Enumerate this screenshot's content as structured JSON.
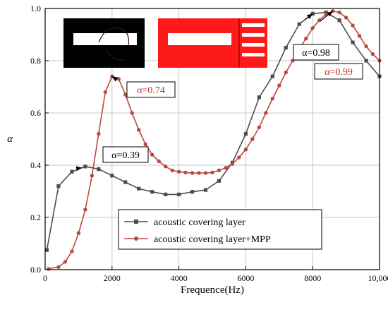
{
  "chart_data": {
    "type": "line",
    "xlabel": "Frequence(Hz)",
    "ylabel": "α",
    "xlim": [
      0,
      10000
    ],
    "ylim": [
      0,
      1.0
    ],
    "x_ticks": [
      0,
      2000,
      4000,
      6000,
      8000,
      10000
    ],
    "x_tick_labels": [
      "0",
      "2000",
      "4000",
      "6000",
      "8000",
      "10,000"
    ],
    "y_ticks": [
      0,
      0.2,
      0.4,
      0.6,
      0.8,
      1.0
    ],
    "y_tick_labels": [
      "0.0",
      "0.2",
      "0.4",
      "0.6",
      "0.8",
      "1.0"
    ],
    "grid": true,
    "legend_position": "lower-center",
    "series": [
      {
        "name": "acoustic covering layer",
        "color": "#4d4d4d",
        "marker": "square",
        "x": [
          50,
          400,
          800,
          1200,
          1600,
          2000,
          2400,
          2800,
          3200,
          3600,
          4000,
          4400,
          4800,
          5200,
          5600,
          6000,
          6400,
          6800,
          7200,
          7600,
          8000,
          8400,
          8800,
          9200,
          9600,
          10000
        ],
        "y": [
          0.075,
          0.32,
          0.375,
          0.395,
          0.385,
          0.36,
          0.335,
          0.31,
          0.298,
          0.288,
          0.288,
          0.298,
          0.305,
          0.34,
          0.41,
          0.52,
          0.66,
          0.74,
          0.85,
          0.94,
          0.98,
          0.985,
          0.955,
          0.87,
          0.8,
          0.74
        ]
      },
      {
        "name": "acoustic covering layer+MPP",
        "color": "#b84a3e",
        "marker": "circle",
        "x": [
          100,
          400,
          600,
          800,
          1000,
          1200,
          1400,
          1600,
          1800,
          2000,
          2200,
          2400,
          2600,
          2800,
          3000,
          3200,
          3400,
          3600,
          3800,
          4000,
          4200,
          4400,
          4600,
          4800,
          5000,
          5200,
          5400,
          5600,
          5800,
          6000,
          6200,
          6400,
          6600,
          6800,
          7000,
          7200,
          7400,
          7600,
          7800,
          8000,
          8200,
          8400,
          8600,
          8800,
          9000,
          9200,
          9400,
          9600,
          9800,
          10000
        ],
        "y": [
          0.003,
          0.01,
          0.03,
          0.07,
          0.14,
          0.23,
          0.36,
          0.52,
          0.68,
          0.74,
          0.73,
          0.67,
          0.6,
          0.535,
          0.48,
          0.44,
          0.415,
          0.395,
          0.38,
          0.375,
          0.372,
          0.37,
          0.37,
          0.37,
          0.372,
          0.38,
          0.39,
          0.405,
          0.43,
          0.46,
          0.5,
          0.545,
          0.6,
          0.655,
          0.705,
          0.755,
          0.8,
          0.845,
          0.885,
          0.925,
          0.955,
          0.978,
          0.99,
          0.985,
          0.965,
          0.935,
          0.895,
          0.855,
          0.825,
          0.8
        ]
      }
    ],
    "annotations": [
      {
        "text": "α=0.39",
        "target_x": 1100,
        "target_y": 0.39,
        "color": "#000000"
      },
      {
        "text": "α=0.74",
        "target_x": 2000,
        "target_y": 0.74,
        "color": "#c0392b"
      },
      {
        "text": "α=0.98",
        "target_x": 8000,
        "target_y": 0.98,
        "color": "#000000"
      },
      {
        "text": "α=0.99",
        "target_x": 8600,
        "target_y": 0.99,
        "color": "#c0392b"
      }
    ]
  },
  "insets": {
    "left_name": "acoustic-covering-layer-structure",
    "right_name": "mpp-structure"
  },
  "colors": {
    "inset_red": "#ff1a1a",
    "inset_black": "#000000",
    "gridline": "#c8c8c8"
  }
}
